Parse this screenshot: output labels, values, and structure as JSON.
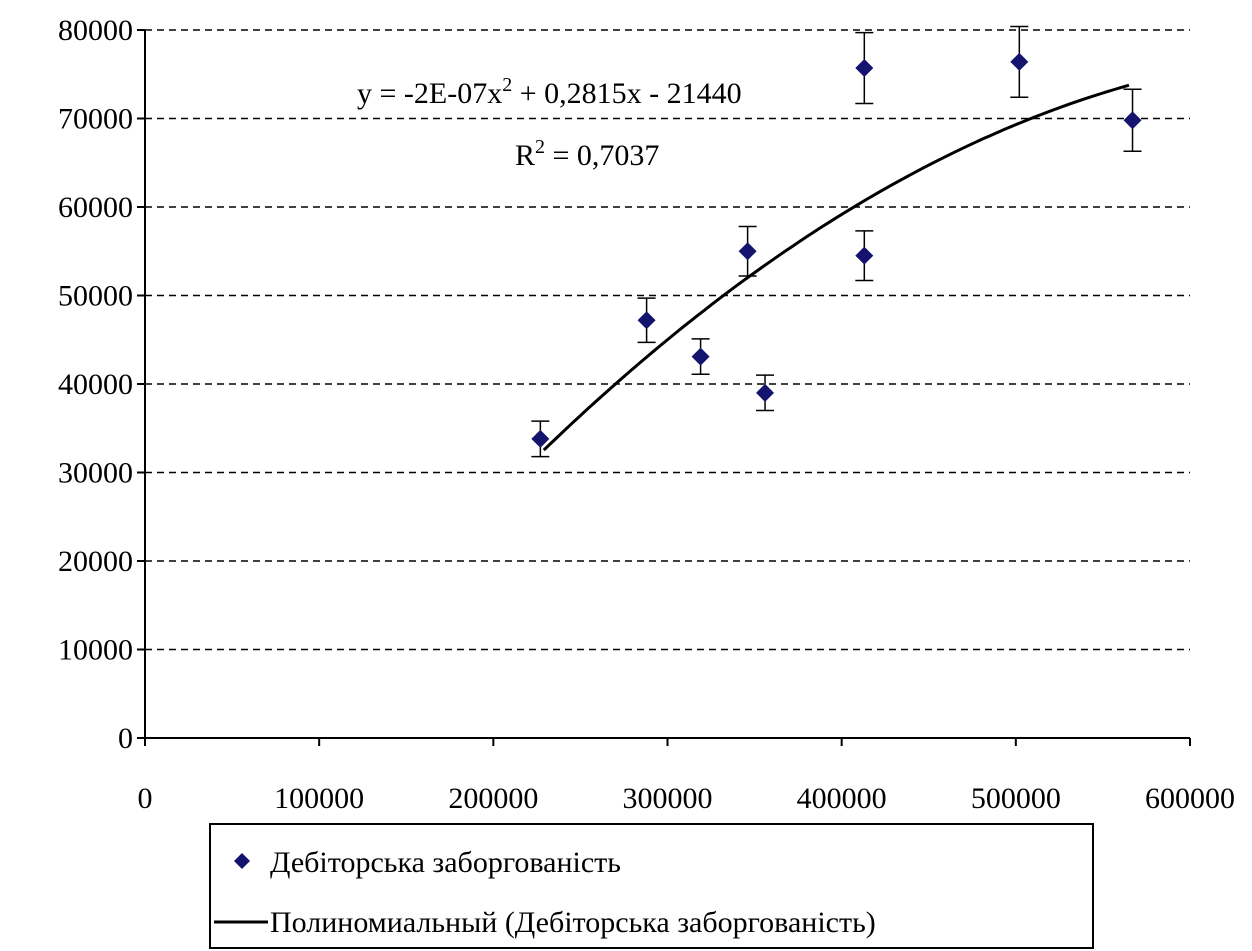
{
  "chart_data": {
    "type": "scatter",
    "xlim": [
      0,
      600000
    ],
    "ylim": [
      0,
      80000
    ],
    "x_ticks": [
      "0",
      "100000",
      "200000",
      "300000",
      "400000",
      "500000",
      "600000"
    ],
    "y_ticks": [
      "0",
      "10000",
      "20000",
      "30000",
      "40000",
      "50000",
      "60000",
      "70000",
      "80000"
    ],
    "grid": "horizontal dashed",
    "series": [
      {
        "name": "Дебіторська заборгованість",
        "marker": "diamond",
        "color": "#14146e",
        "x": [
          227000,
          288000,
          319000,
          346000,
          356000,
          413000,
          413000,
          502000,
          567000
        ],
        "y": [
          33800,
          47200,
          43100,
          55000,
          39000,
          54500,
          75700,
          76400,
          69800
        ],
        "error": [
          2000,
          2500,
          2000,
          2800,
          2000,
          2800,
          4000,
          4000,
          3500
        ]
      }
    ],
    "trendline": {
      "name": "Полиномиальный (Дебіторська заборгованість)",
      "color": "#000000",
      "x_range": [
        229000,
        565000
      ],
      "coefficients": [
        -2e-07,
        0.2815,
        -21440
      ],
      "equation_prefix": "y = -2E-07x",
      "equation_suffix": " + 0,2815x - 21440",
      "r2_prefix": "R",
      "r2_suffix": " = 0,7037",
      "exponent": "2"
    },
    "legend": {
      "position": "bottom",
      "entries": [
        "Дебіторська заборгованість",
        "Полиномиальный (Дебіторська заборгованість)"
      ]
    }
  }
}
